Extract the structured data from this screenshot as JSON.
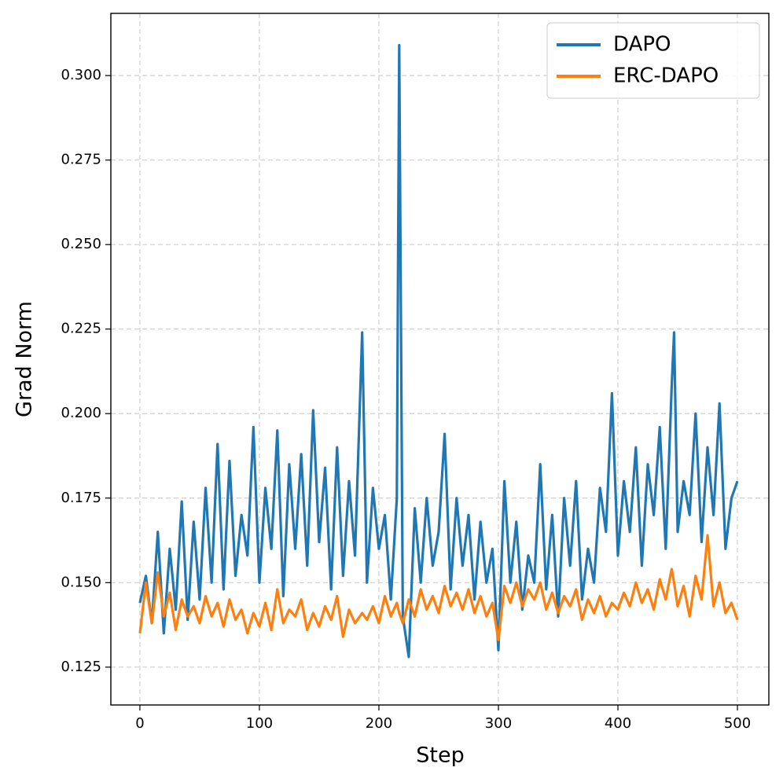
{
  "chart_data": {
    "type": "line",
    "xlabel": "Step",
    "ylabel": "Grad Norm",
    "x": [
      0,
      5,
      10,
      15,
      20,
      25,
      30,
      35,
      40,
      45,
      50,
      55,
      60,
      65,
      70,
      75,
      80,
      85,
      90,
      95,
      100,
      105,
      110,
      115,
      120,
      125,
      130,
      135,
      140,
      145,
      150,
      155,
      160,
      165,
      170,
      175,
      180,
      186,
      190,
      195,
      200,
      205,
      210,
      215,
      217,
      220,
      225,
      230,
      235,
      240,
      245,
      250,
      255,
      260,
      265,
      270,
      275,
      280,
      285,
      290,
      295,
      300,
      305,
      310,
      315,
      320,
      325,
      330,
      335,
      340,
      345,
      350,
      355,
      360,
      365,
      370,
      375,
      380,
      385,
      390,
      395,
      400,
      405,
      410,
      415,
      420,
      425,
      430,
      435,
      440,
      445,
      447,
      450,
      455,
      460,
      465,
      470,
      475,
      480,
      485,
      490,
      495,
      500
    ],
    "series": [
      {
        "name": "DAPO",
        "color": "#1f77b4",
        "values": [
          0.144,
          0.152,
          0.138,
          0.165,
          0.135,
          0.16,
          0.142,
          0.174,
          0.139,
          0.168,
          0.145,
          0.178,
          0.15,
          0.191,
          0.148,
          0.186,
          0.152,
          0.17,
          0.158,
          0.196,
          0.15,
          0.178,
          0.16,
          0.195,
          0.146,
          0.185,
          0.16,
          0.188,
          0.155,
          0.201,
          0.162,
          0.184,
          0.148,
          0.19,
          0.152,
          0.18,
          0.158,
          0.224,
          0.15,
          0.178,
          0.16,
          0.17,
          0.145,
          0.175,
          0.309,
          0.14,
          0.128,
          0.172,
          0.15,
          0.175,
          0.155,
          0.165,
          0.194,
          0.148,
          0.175,
          0.155,
          0.17,
          0.145,
          0.168,
          0.15,
          0.16,
          0.13,
          0.18,
          0.15,
          0.168,
          0.142,
          0.158,
          0.15,
          0.185,
          0.148,
          0.17,
          0.14,
          0.175,
          0.155,
          0.18,
          0.145,
          0.16,
          0.15,
          0.178,
          0.165,
          0.206,
          0.158,
          0.18,
          0.165,
          0.19,
          0.155,
          0.185,
          0.17,
          0.196,
          0.16,
          0.208,
          0.224,
          0.165,
          0.18,
          0.17,
          0.2,
          0.162,
          0.19,
          0.17,
          0.203,
          0.16,
          0.175,
          0.18
        ]
      },
      {
        "name": "ERC-DAPO",
        "color": "#ff7f0e",
        "values": [
          0.135,
          0.15,
          0.138,
          0.153,
          0.14,
          0.147,
          0.136,
          0.145,
          0.14,
          0.143,
          0.138,
          0.146,
          0.14,
          0.144,
          0.137,
          0.145,
          0.139,
          0.142,
          0.135,
          0.141,
          0.137,
          0.144,
          0.136,
          0.148,
          0.138,
          0.142,
          0.14,
          0.145,
          0.136,
          0.141,
          0.137,
          0.143,
          0.139,
          0.146,
          0.134,
          0.142,
          0.138,
          0.141,
          0.139,
          0.143,
          0.138,
          0.146,
          0.14,
          0.144,
          0.141,
          0.138,
          0.145,
          0.14,
          0.148,
          0.142,
          0.146,
          0.141,
          0.149,
          0.143,
          0.147,
          0.142,
          0.148,
          0.141,
          0.146,
          0.14,
          0.144,
          0.133,
          0.149,
          0.144,
          0.15,
          0.143,
          0.148,
          0.145,
          0.15,
          0.142,
          0.147,
          0.141,
          0.146,
          0.143,
          0.148,
          0.139,
          0.145,
          0.141,
          0.146,
          0.14,
          0.144,
          0.142,
          0.147,
          0.143,
          0.15,
          0.144,
          0.148,
          0.142,
          0.151,
          0.145,
          0.154,
          0.15,
          0.143,
          0.149,
          0.14,
          0.152,
          0.145,
          0.164,
          0.143,
          0.15,
          0.141,
          0.144,
          0.139
        ]
      }
    ],
    "xlim": [
      -24.3,
      526.3
    ],
    "xticks": [
      0,
      100,
      200,
      300,
      400,
      500
    ],
    "ylim": [
      0.1138,
      0.3184
    ],
    "yticks": [
      0.125,
      {
        "value": 0.15,
        "label": "0.150"
      },
      0.175,
      {
        "value": 0.2,
        "label": "0.200"
      },
      0.225,
      {
        "value": 0.25,
        "label": "0.250"
      },
      0.275,
      {
        "value": 0.3,
        "label": "0.300"
      }
    ],
    "grid": true,
    "legend": "upper right"
  }
}
